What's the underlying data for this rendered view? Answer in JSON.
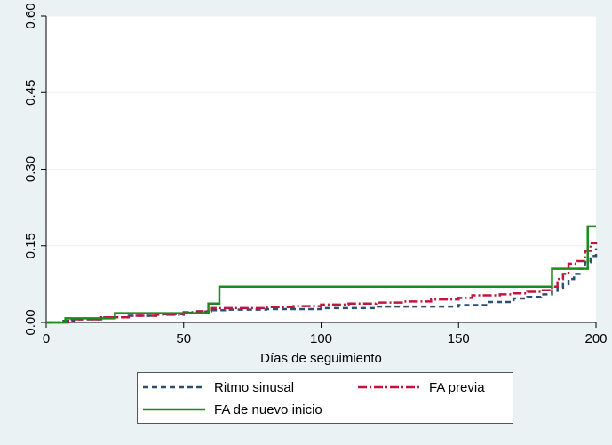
{
  "chart_data": {
    "type": "line",
    "xlabel": "Días de seguimiento",
    "ylabel": "",
    "xlim": [
      0,
      200
    ],
    "ylim": [
      0,
      0.6
    ],
    "x_ticks": [
      "0",
      "50",
      "100",
      "150",
      "200"
    ],
    "y_ticks": [
      "0.00",
      "0.15",
      "0.30",
      "0.45",
      "0.60"
    ],
    "grid": "horizontal",
    "legend_placement": "bottom",
    "series": [
      {
        "name": "Ritmo sinusal",
        "color": "#2c4f72",
        "style": "dash",
        "x": [
          0,
          5,
          10,
          20,
          30,
          40,
          50,
          55,
          60,
          65,
          80,
          100,
          120,
          150,
          160,
          170,
          175,
          180,
          184,
          186,
          188,
          190,
          192,
          194,
          196,
          198,
          200
        ],
        "y": [
          0,
          0.003,
          0.006,
          0.01,
          0.013,
          0.016,
          0.019,
          0.021,
          0.024,
          0.025,
          0.026,
          0.028,
          0.031,
          0.034,
          0.04,
          0.047,
          0.05,
          0.055,
          0.062,
          0.068,
          0.075,
          0.085,
          0.095,
          0.105,
          0.118,
          0.13,
          0.145
        ]
      },
      {
        "name": "FA previa",
        "color": "#c0163d",
        "style": "dashdot",
        "x": [
          0,
          8,
          20,
          30,
          40,
          50,
          55,
          60,
          70,
          80,
          90,
          100,
          110,
          120,
          130,
          140,
          150,
          155,
          165,
          170,
          175,
          180,
          184,
          186,
          188,
          190,
          193,
          196,
          198,
          200
        ],
        "y": [
          0,
          0.006,
          0.01,
          0.013,
          0.015,
          0.02,
          0.022,
          0.028,
          0.028,
          0.03,
          0.032,
          0.035,
          0.037,
          0.039,
          0.041,
          0.045,
          0.048,
          0.053,
          0.055,
          0.057,
          0.06,
          0.063,
          0.07,
          0.085,
          0.095,
          0.115,
          0.12,
          0.14,
          0.155,
          0.157
        ]
      },
      {
        "name": "FA de nuevo inicio",
        "color": "#1b8a1f",
        "style": "solid",
        "x": [
          0,
          7,
          25,
          59,
          63,
          184,
          190,
          197,
          200
        ],
        "y": [
          0,
          0.008,
          0.018,
          0.037,
          0.07,
          0.105,
          0.105,
          0.188,
          0.188
        ]
      }
    ]
  }
}
